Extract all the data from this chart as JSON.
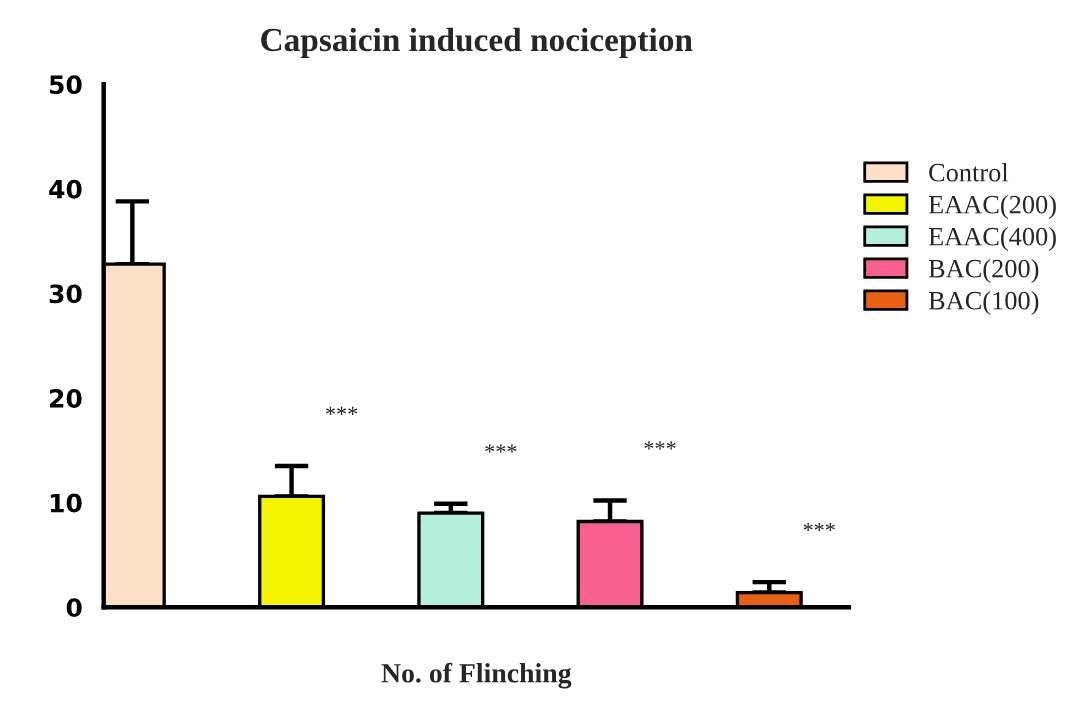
{
  "chart_data": {
    "type": "bar",
    "title": "Capsaicin induced nociception",
    "xlabel": "No. of Flinching",
    "categories": [
      null,
      null,
      null,
      null,
      null
    ],
    "series": [
      {
        "name": "Control",
        "color": "#fde0c5",
        "values": [
          32.8,
          null,
          null,
          null,
          null
        ],
        "errors": [
          6.0,
          null,
          null,
          null,
          null
        ]
      },
      {
        "name": "EAAC(200)",
        "color": "#f5f500",
        "values": [
          null,
          10.6,
          null,
          null,
          null
        ],
        "errors": [
          null,
          2.9,
          null,
          null,
          null
        ]
      },
      {
        "name": "EAAC(400)",
        "color": "#b5f0dc",
        "values": [
          null,
          null,
          9.0,
          null,
          null
        ],
        "errors": [
          null,
          null,
          0.9,
          null,
          null
        ]
      },
      {
        "name": "BAC(200)",
        "color": "#f86090",
        "values": [
          null,
          null,
          null,
          8.2,
          null
        ],
        "errors": [
          null,
          null,
          null,
          2.0,
          null
        ]
      },
      {
        "name": "BAC(100)",
        "color": "#e86010",
        "values": [
          null,
          null,
          null,
          null,
          1.4
        ],
        "errors": [
          null,
          null,
          null,
          null,
          1.0
        ]
      }
    ],
    "annotations": [
      "***",
      "***",
      "***",
      "***"
    ],
    "ylim": [
      0,
      50
    ],
    "yticks": [
      0,
      10,
      20,
      30,
      40,
      50
    ],
    "grid": false,
    "legend": "top right",
    "tick_labels": "y"
  }
}
